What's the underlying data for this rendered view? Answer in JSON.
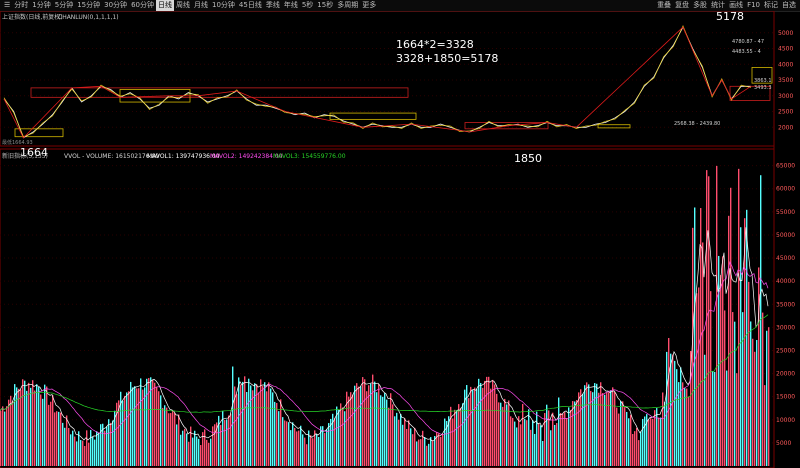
{
  "toolbar": {
    "menu": "☰",
    "periods": [
      "分时",
      "1分钟",
      "5分钟",
      "15分钟",
      "30分钟",
      "60分钟",
      "日线",
      "周线",
      "月线",
      "10分钟",
      "45日线",
      "季线",
      "年线",
      "5秒",
      "15秒",
      "多周期",
      "更多"
    ],
    "active_period": "日线",
    "right_items": [
      "重叠",
      "复盘",
      "多股",
      "统计",
      "画线",
      "F10",
      "标记",
      "自选"
    ]
  },
  "price_panel": {
    "title": "上证指数(日线,前复权)",
    "indicator": "CHANLUN(0,1,1,1,1)",
    "ylim": [
      1500,
      5500
    ],
    "y_ticks": [
      {
        "v": 5000,
        "t": "5000"
      },
      {
        "v": 4500,
        "t": "4500"
      },
      {
        "v": 4000,
        "t": "4000"
      },
      {
        "v": 3500,
        "t": "3500"
      },
      {
        "v": 3000,
        "t": "3000"
      },
      {
        "v": 2500,
        "t": "2500"
      },
      {
        "v": 2000,
        "t": "2000"
      }
    ],
    "annotation_line1": "1664*2=3328",
    "annotation_line2": "3328+1850=5178",
    "label_low1": "1664",
    "label_low2": "1850",
    "label_high": "5178",
    "small_labels": [
      "4780.87 - 47",
      "4483.55 - 4",
      "3863.1",
      "3493.3",
      "2568.38 - 2439.80"
    ],
    "left_small": "最低1664.93"
  },
  "volume_panel": {
    "title": "新旧指标(5,135)",
    "legend": [
      {
        "t": "VVOL - VOLUME: 161502176.00",
        "color": "#d7d7d7"
      },
      {
        "t": "MAVOL1: 139747936.00",
        "color": "#ffffff"
      },
      {
        "t": "MAVOL2: 149242384.00",
        "color": "#ff4df0"
      },
      {
        "t": "MAVOL3: 154559776.00",
        "color": "#27d427"
      }
    ],
    "ylim": [
      0,
      66000
    ],
    "y_ticks": [
      "65000",
      "60000",
      "55000",
      "50000",
      "45000",
      "40000",
      "35000",
      "30000",
      "25000",
      "20000",
      "15000",
      "10000",
      "5000"
    ],
    "color_up": "#ff4d6d",
    "color_down": "#55ffff"
  },
  "chart_data": {
    "type": "line",
    "price_series": {
      "name": "",
      "x_index": [
        0,
        10,
        20,
        30,
        40,
        50,
        60,
        70,
        80,
        90,
        100,
        110,
        120,
        130,
        140,
        150,
        160,
        170,
        180,
        190,
        200,
        210,
        220,
        230,
        240,
        250,
        260,
        270,
        280,
        290,
        300,
        310,
        320,
        330,
        340,
        350,
        360,
        370,
        380,
        390,
        400,
        410,
        420,
        430,
        440,
        450,
        460,
        470,
        480,
        490,
        500,
        510,
        520,
        530,
        540,
        550,
        560,
        570,
        580,
        590,
        600,
        610,
        620,
        630,
        640,
        650,
        660,
        670,
        680,
        690,
        700,
        710,
        720,
        730,
        740,
        750,
        760,
        770
      ],
      "values": [
        2900,
        2500,
        1664,
        1850,
        2100,
        2400,
        2800,
        3250,
        2800,
        3000,
        3300,
        3200,
        2950,
        3100,
        2900,
        2600,
        2700,
        3000,
        2900,
        3100,
        3000,
        2800,
        2900,
        3000,
        3150,
        2900,
        2700,
        2700,
        2600,
        2500,
        2400,
        2450,
        2300,
        2400,
        2350,
        2200,
        2100,
        2000,
        2100,
        2050,
        2000,
        2000,
        2100,
        2000,
        2000,
        2100,
        2000,
        1900,
        1850,
        2000,
        2150,
        2050,
        2050,
        2100,
        2000,
        2050,
        2150,
        2050,
        2050,
        2000,
        2000,
        2100,
        2150,
        2300,
        2500,
        2800,
        3300,
        3600,
        4200,
        4600,
        5178,
        4500,
        3900,
        3000,
        3500,
        2900,
        3300,
        3300
      ]
    },
    "volume_series": {
      "name": "",
      "note_estimated": true
    }
  }
}
